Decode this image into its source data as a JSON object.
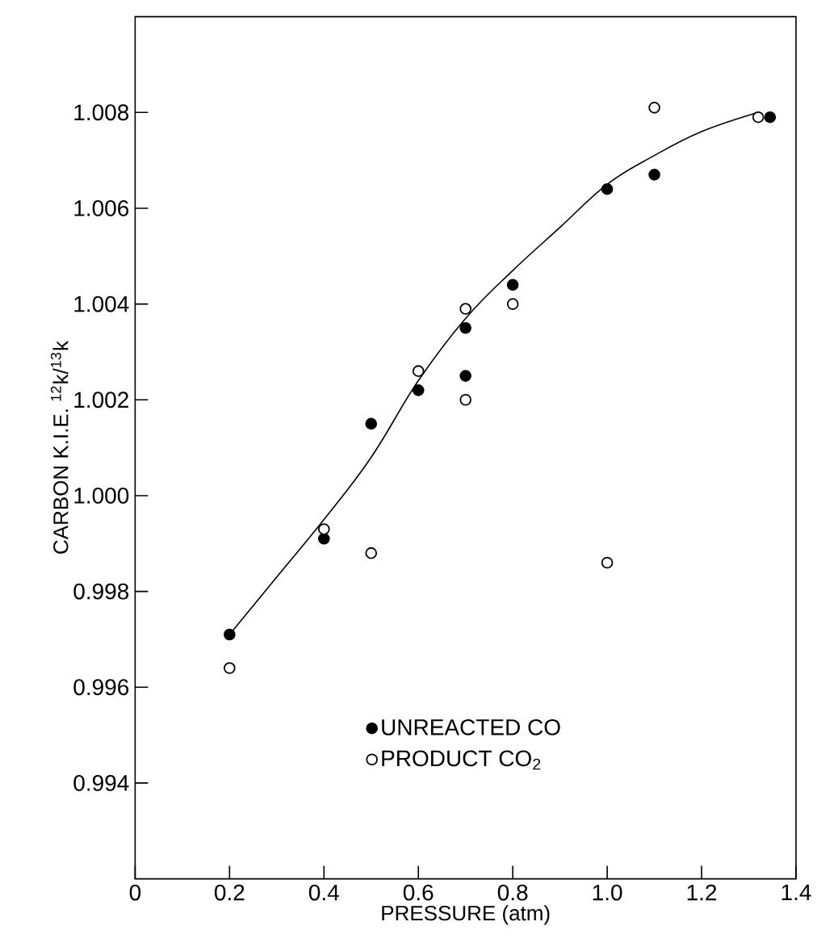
{
  "chart_data": {
    "type": "scatter",
    "xlabel": "PRESSURE (atm)",
    "ylabel": "CARBON K.I.E. $^{12}$k/$^{13}$k",
    "xlim": [
      0,
      1.4
    ],
    "ylim": [
      0.992,
      1.01
    ],
    "xticks": [
      0,
      0.2,
      0.4,
      0.6,
      0.8,
      {
        "value": 1.0,
        "label": "1.0"
      },
      1.2,
      1.4
    ],
    "yticks": [
      0.994,
      0.996,
      0.998,
      {
        "value": 1.0,
        "label": "1.000"
      },
      1.002,
      1.004,
      1.006,
      1.008
    ],
    "marker": "circle",
    "legend": "bottom",
    "grid": false,
    "series": [
      {
        "name": "UNREACTED CO",
        "color": "#000000",
        "x": [
          0.2,
          0.4,
          0.5,
          0.6,
          0.7,
          0.7,
          0.8,
          1.0,
          1.1,
          1.345
        ],
        "values": [
          0.9971,
          0.9991,
          1.0015,
          1.0022,
          1.0035,
          1.0025,
          1.0044,
          1.0064,
          1.0067,
          1.0079
        ]
      },
      {
        "name": "PRODUCT CO$_{2}$",
        "color": "#ffffff",
        "x": [
          0.2,
          0.4,
          0.5,
          0.6,
          0.7,
          0.7,
          0.8,
          1.0,
          1.1,
          1.32
        ],
        "values": [
          0.9964,
          0.9993,
          0.9988,
          1.0026,
          1.0039,
          1.002,
          1.004,
          0.9986,
          1.0081,
          1.0079
        ]
      },
      {
        "type": "line",
        "color": "#000000",
        "marker": "none",
        "x": [
          0.2,
          0.3,
          0.4,
          0.5,
          0.6,
          0.7,
          0.8,
          0.9,
          1.0,
          1.1,
          1.2,
          1.32
        ],
        "values": [
          0.9971,
          0.9983,
          0.9995,
          1.0008,
          1.0024,
          1.0037,
          1.0047,
          1.0056,
          1.0065,
          1.0071,
          1.0076,
          1.008
        ]
      }
    ]
  }
}
